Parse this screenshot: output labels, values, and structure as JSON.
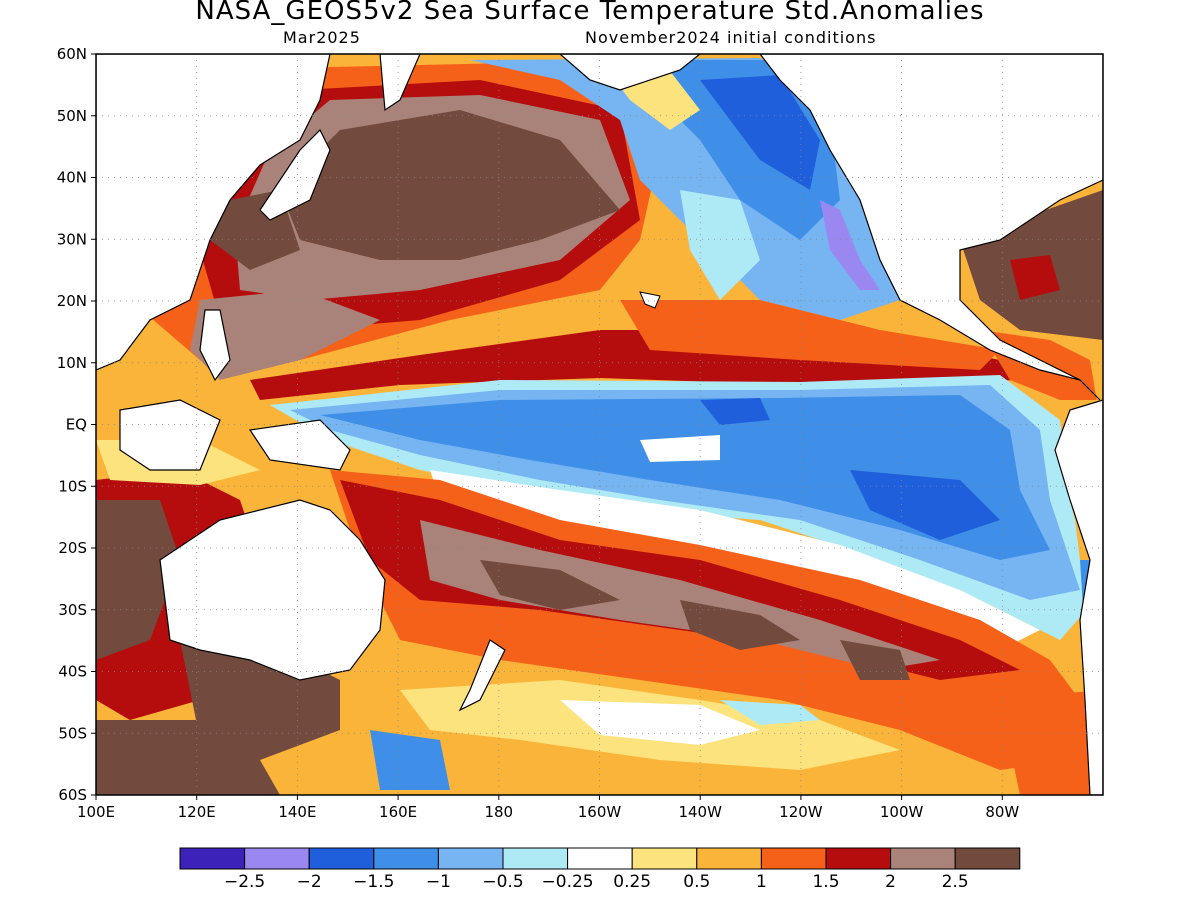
{
  "title": "NASA_GEOS5v2 Sea Surface Temperature Std.Anomalies",
  "subtitle_left": "Mar2025",
  "subtitle_right": "November2024 initial conditions",
  "lat_labels": [
    "60N",
    "50N",
    "40N",
    "30N",
    "20N",
    "10N",
    "EQ",
    "10S",
    "20S",
    "30S",
    "40S",
    "50S",
    "60S"
  ],
  "lon_labels": [
    "100E",
    "120E",
    "140E",
    "160E",
    "180",
    "160W",
    "140W",
    "120W",
    "100W",
    "80W"
  ],
  "colorbar": {
    "labels": [
      "−2.5",
      "−2",
      "−1.5",
      "−1",
      "−0.5",
      "−0.25",
      "0.25",
      "0.5",
      "1",
      "1.5",
      "2",
      "2.5"
    ],
    "colors": [
      "#3c22b8",
      "#9b87f0",
      "#1f5fdc",
      "#3f8fe8",
      "#77b4f2",
      "#aee9f6",
      "#ffffff",
      "#fde37d",
      "#fbb43a",
      "#f6611a",
      "#b50d0d",
      "#a98379",
      "#724a3e"
    ]
  },
  "land_color": "#ffffff",
  "coast_color": "#000000"
}
